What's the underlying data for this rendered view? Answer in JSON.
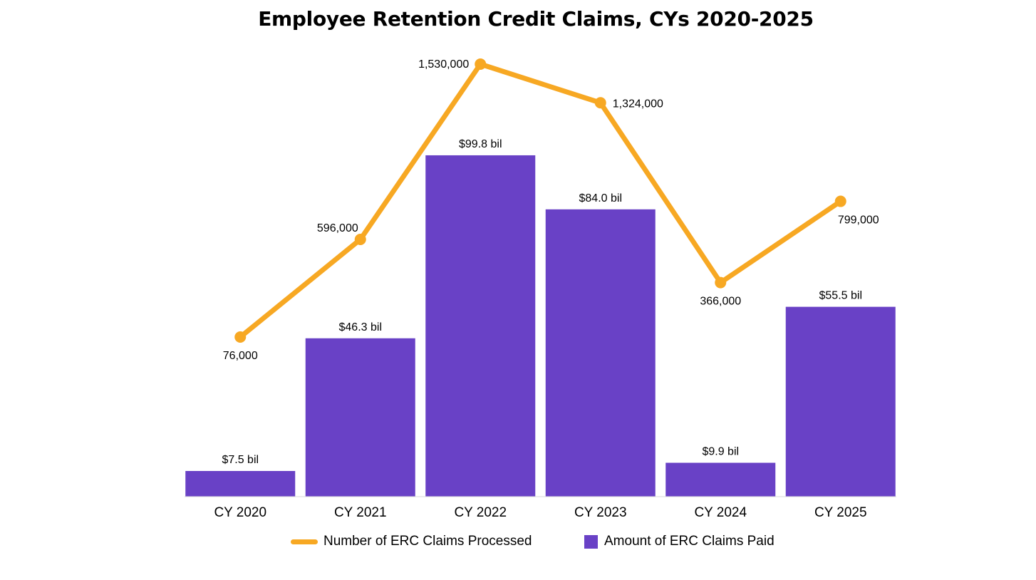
{
  "chart_data": {
    "type": "bar",
    "title": "Employee Retention Credit Claims, CYs 2020-2025",
    "categories": [
      "CY 2020",
      "CY 2021",
      "CY 2022",
      "CY 2023",
      "CY 2024",
      "CY 2025"
    ],
    "series": [
      {
        "name": "Amount of ERC Claims Paid",
        "type": "bar",
        "values": [
          7.5,
          46.3,
          99.8,
          84.0,
          9.9,
          55.5
        ],
        "labels": [
          "$7.5 bil",
          "$46.3 bil",
          "$99.8 bil",
          "$84.0 bil",
          "$9.9 bil",
          "$55.5 bil"
        ],
        "color": "#6941C6"
      },
      {
        "name": "Number of ERC Claims Processed",
        "type": "line",
        "values": [
          76000,
          596000,
          1530000,
          1324000,
          366000,
          799000
        ],
        "labels": [
          "76,000",
          "596,000",
          "1,530,000",
          "1,324,000",
          "366,000",
          "799,000"
        ],
        "color": "#F7A823"
      }
    ],
    "xlabel": "",
    "ylabel": "",
    "grid": false,
    "legend_position": "bottom"
  }
}
